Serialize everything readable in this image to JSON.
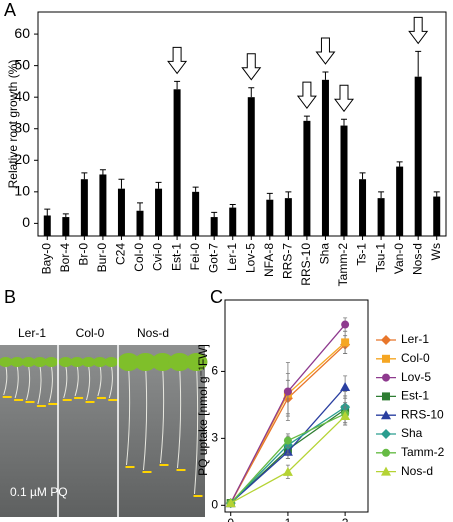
{
  "chart_data": [
    {
      "type": "bar",
      "panel_label": "A",
      "ylabel": "Relative root growth (%)",
      "categories": [
        "Bay-0",
        "Bor-4",
        "Br-0",
        "Bur-0",
        "C24",
        "Col-0",
        "Cvi-0",
        "Est-1",
        "Fei-0",
        "Got-7",
        "Ler-1",
        "Lov-5",
        "NFA-8",
        "RRS-7",
        "RRS-10",
        "Sha",
        "Tamm-2",
        "Ts-1",
        "Tsu-1",
        "Van-0",
        "Nos-d",
        "Ws"
      ],
      "values": [
        2.5,
        2,
        14,
        15.5,
        11,
        4,
        11,
        42.5,
        10,
        2,
        5,
        40,
        7.5,
        8,
        32.5,
        45.5,
        31,
        14,
        8,
        18,
        46.5,
        8.5
      ],
      "errors": [
        2,
        1,
        2,
        1.5,
        3,
        2.5,
        2,
        2.5,
        1.5,
        1.5,
        1,
        3,
        2,
        2,
        1.5,
        2.5,
        2,
        2,
        2,
        1.5,
        8,
        1.5
      ],
      "arrows": [
        "Est-1",
        "Lov-5",
        "RRS-10",
        "Sha",
        "Tamm-2",
        "Nos-d"
      ],
      "color": "#000000",
      "ylim": [
        -4,
        67
      ],
      "yticks": [
        0,
        10,
        20,
        30,
        40,
        50,
        60
      ]
    },
    {
      "type": "line",
      "panel_label": "C",
      "ylabel": "PQ uptake [nmol g⁻¹FW]",
      "x": [
        0,
        1,
        2
      ],
      "xlim": [
        -0.1,
        2.4
      ],
      "xticks": [
        0,
        1,
        2
      ],
      "ylim": [
        -0.3,
        9.2
      ],
      "yticks": [
        0,
        3,
        6
      ],
      "series": [
        {
          "name": "Ler-1",
          "color": "#e8762b",
          "marker": "diamond",
          "values": [
            0.1,
            4.8,
            7.2
          ],
          "errors": [
            0.1,
            0.8,
            0.4
          ]
        },
        {
          "name": "Col-0",
          "color": "#f5a623",
          "marker": "square",
          "values": [
            0.1,
            5.0,
            7.3
          ],
          "errors": [
            0.1,
            0.9,
            0.5
          ]
        },
        {
          "name": "Lov-5",
          "color": "#8e3a8e",
          "marker": "circle",
          "values": [
            0.1,
            5.1,
            8.1
          ],
          "errors": [
            0.1,
            1.3,
            0.3
          ]
        },
        {
          "name": "Est-1",
          "color": "#2e7d32",
          "marker": "square",
          "values": [
            0.1,
            2.5,
            4.3
          ],
          "errors": [
            0.1,
            0.4,
            0.6
          ]
        },
        {
          "name": "RRS-10",
          "color": "#2a3fa0",
          "marker": "triangle",
          "values": [
            0.1,
            2.4,
            5.3
          ],
          "errors": [
            0.1,
            0.3,
            0.5
          ]
        },
        {
          "name": "Sha",
          "color": "#2a9d8f",
          "marker": "diamond",
          "values": [
            0.1,
            2.7,
            4.4
          ],
          "errors": [
            0.1,
            0.4,
            0.7
          ]
        },
        {
          "name": "Tamm-2",
          "color": "#66bb44",
          "marker": "circle",
          "values": [
            0.1,
            2.9,
            4.1
          ],
          "errors": [
            0.1,
            0.3,
            0.5
          ]
        },
        {
          "name": "Nos-d",
          "color": "#b5d334",
          "marker": "triangle",
          "values": [
            0.1,
            1.5,
            4.0
          ],
          "errors": [
            0.1,
            0.3,
            0.4
          ]
        }
      ]
    }
  ],
  "panel_b": {
    "label": "B",
    "columns": [
      "Ler-1",
      "Col-0",
      "Nos-d"
    ],
    "caption": "0.1 µM PQ"
  }
}
